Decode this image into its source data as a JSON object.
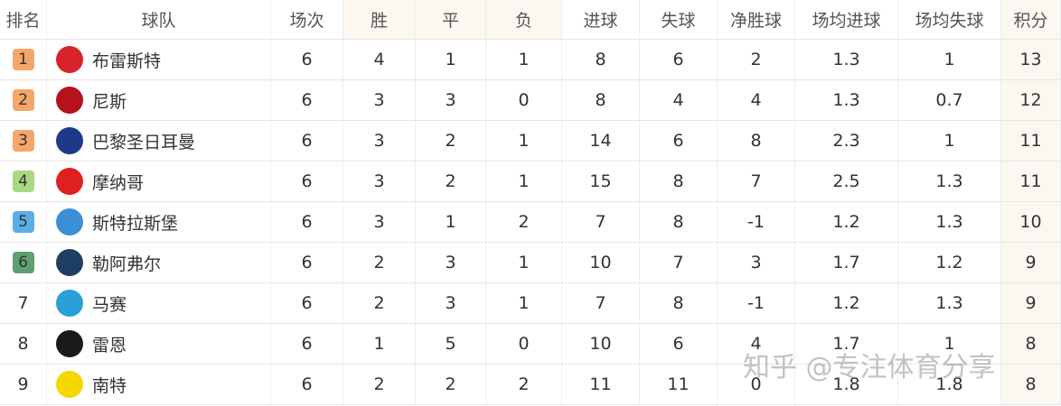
{
  "table": {
    "header": [
      "排名",
      "球队",
      "场次",
      "胜",
      "平",
      "负",
      "进球",
      "失球",
      "净胜球",
      "场均进球",
      "场均失球",
      "积分"
    ],
    "rows": [
      [
        1,
        "布雷斯特",
        6,
        4,
        1,
        1,
        8,
        6,
        2,
        1.3,
        1,
        13
      ],
      [
        2,
        "尼斯",
        6,
        3,
        3,
        0,
        8,
        4,
        4,
        1.3,
        0.7,
        12
      ],
      [
        3,
        "巴黎圣日耳曼",
        6,
        3,
        2,
        1,
        14,
        6,
        8,
        2.3,
        1,
        11
      ],
      [
        4,
        "摩纳哥",
        6,
        3,
        2,
        1,
        15,
        8,
        7,
        2.5,
        1.3,
        11
      ],
      [
        5,
        "斯特拉斯堡",
        6,
        3,
        1,
        2,
        7,
        8,
        -1,
        1.2,
        1.3,
        10
      ],
      [
        6,
        "勒阿弗尔",
        6,
        2,
        3,
        1,
        10,
        7,
        3,
        1.7,
        1.2,
        9
      ],
      [
        7,
        "马赛",
        6,
        2,
        3,
        1,
        7,
        8,
        -1,
        1.2,
        1.3,
        9
      ],
      [
        8,
        "雷恩",
        6,
        1,
        5,
        0,
        10,
        6,
        4,
        1.7,
        1,
        8
      ],
      [
        9,
        "南特",
        6,
        2,
        2,
        2,
        11,
        11,
        0,
        1.8,
        1.8,
        8
      ]
    ]
  },
  "watermark": "知乎 @专注体育分享"
}
